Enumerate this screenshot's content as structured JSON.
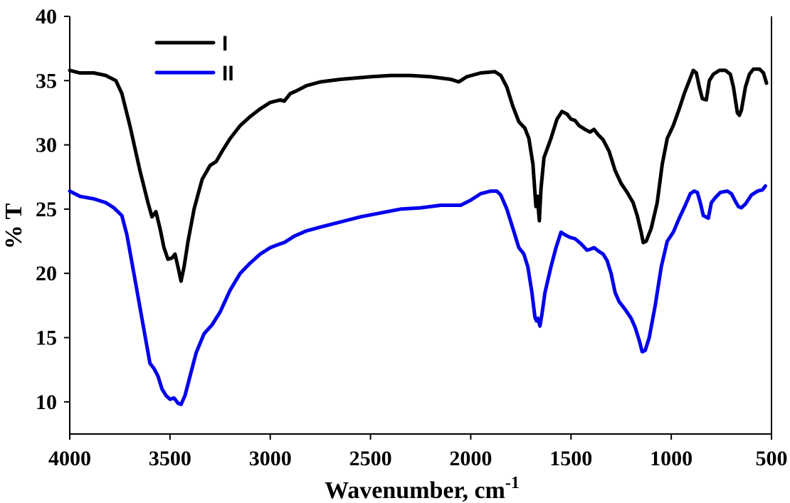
{
  "chart_data": {
    "type": "line",
    "xlabel": "Wavenumber, cm",
    "xlabel_superscript": "-1",
    "ylabel": "% T",
    "xlim": [
      4000,
      500
    ],
    "ylim": [
      7.5,
      40
    ],
    "x_reversed": true,
    "x_ticks": [
      4000,
      3500,
      3000,
      2500,
      2000,
      1500,
      1000,
      500
    ],
    "x_tick_labels": [
      "4000",
      "3500",
      "3000",
      "2500",
      "2000",
      "1500",
      "1000",
      "500"
    ],
    "y_ticks": [
      10,
      15,
      20,
      25,
      30,
      35,
      40
    ],
    "y_tick_labels": [
      "10",
      "15",
      "20",
      "25",
      "30",
      "35",
      "40"
    ],
    "grid": false,
    "legend_position": "top-left",
    "series": [
      {
        "name": "I",
        "color": "#000000",
        "points": [
          [
            4000,
            35.8
          ],
          [
            3950,
            35.6
          ],
          [
            3880,
            35.6
          ],
          [
            3820,
            35.4
          ],
          [
            3770,
            35.0
          ],
          [
            3740,
            34.0
          ],
          [
            3700,
            31.5
          ],
          [
            3650,
            28.0
          ],
          [
            3610,
            25.5
          ],
          [
            3590,
            24.4
          ],
          [
            3570,
            24.8
          ],
          [
            3550,
            23.5
          ],
          [
            3530,
            22.0
          ],
          [
            3510,
            21.1
          ],
          [
            3490,
            21.2
          ],
          [
            3475,
            21.5
          ],
          [
            3460,
            20.5
          ],
          [
            3445,
            19.4
          ],
          [
            3430,
            20.5
          ],
          [
            3410,
            22.5
          ],
          [
            3380,
            25.0
          ],
          [
            3340,
            27.3
          ],
          [
            3300,
            28.4
          ],
          [
            3270,
            28.7
          ],
          [
            3240,
            29.5
          ],
          [
            3200,
            30.5
          ],
          [
            3150,
            31.5
          ],
          [
            3100,
            32.2
          ],
          [
            3050,
            32.8
          ],
          [
            3000,
            33.3
          ],
          [
            2950,
            33.5
          ],
          [
            2930,
            33.4
          ],
          [
            2900,
            34.0
          ],
          [
            2870,
            34.2
          ],
          [
            2820,
            34.6
          ],
          [
            2750,
            34.9
          ],
          [
            2650,
            35.1
          ],
          [
            2500,
            35.3
          ],
          [
            2400,
            35.4
          ],
          [
            2300,
            35.4
          ],
          [
            2200,
            35.3
          ],
          [
            2100,
            35.1
          ],
          [
            2060,
            34.9
          ],
          [
            2020,
            35.3
          ],
          [
            1950,
            35.6
          ],
          [
            1880,
            35.7
          ],
          [
            1850,
            35.4
          ],
          [
            1820,
            34.5
          ],
          [
            1790,
            33.0
          ],
          [
            1760,
            31.8
          ],
          [
            1730,
            31.3
          ],
          [
            1710,
            30.5
          ],
          [
            1690,
            28.5
          ],
          [
            1675,
            25.2
          ],
          [
            1668,
            26.0
          ],
          [
            1658,
            24.1
          ],
          [
            1650,
            26.5
          ],
          [
            1635,
            29.0
          ],
          [
            1600,
            30.5
          ],
          [
            1570,
            32.0
          ],
          [
            1545,
            32.6
          ],
          [
            1520,
            32.4
          ],
          [
            1500,
            32.0
          ],
          [
            1480,
            31.9
          ],
          [
            1460,
            31.5
          ],
          [
            1430,
            31.2
          ],
          [
            1405,
            31.0
          ],
          [
            1385,
            31.2
          ],
          [
            1365,
            30.8
          ],
          [
            1340,
            30.4
          ],
          [
            1310,
            29.5
          ],
          [
            1280,
            28.0
          ],
          [
            1250,
            27.0
          ],
          [
            1220,
            26.3
          ],
          [
            1190,
            25.5
          ],
          [
            1170,
            24.5
          ],
          [
            1150,
            23.2
          ],
          [
            1140,
            22.4
          ],
          [
            1125,
            22.5
          ],
          [
            1100,
            23.5
          ],
          [
            1070,
            25.5
          ],
          [
            1045,
            28.5
          ],
          [
            1020,
            30.5
          ],
          [
            990,
            31.5
          ],
          [
            960,
            32.8
          ],
          [
            935,
            34.0
          ],
          [
            910,
            35.0
          ],
          [
            890,
            35.8
          ],
          [
            875,
            35.6
          ],
          [
            860,
            34.5
          ],
          [
            845,
            33.6
          ],
          [
            825,
            33.5
          ],
          [
            810,
            35.0
          ],
          [
            790,
            35.5
          ],
          [
            760,
            35.8
          ],
          [
            730,
            35.8
          ],
          [
            705,
            35.5
          ],
          [
            690,
            34.5
          ],
          [
            670,
            32.5
          ],
          [
            660,
            32.3
          ],
          [
            650,
            32.7
          ],
          [
            630,
            34.5
          ],
          [
            610,
            35.5
          ],
          [
            590,
            35.9
          ],
          [
            560,
            35.9
          ],
          [
            540,
            35.6
          ],
          [
            525,
            34.8
          ]
        ]
      },
      {
        "name": "II",
        "color": "#0000ee",
        "points": [
          [
            4000,
            26.4
          ],
          [
            3950,
            26.0
          ],
          [
            3880,
            25.8
          ],
          [
            3820,
            25.5
          ],
          [
            3780,
            25.1
          ],
          [
            3740,
            24.5
          ],
          [
            3715,
            23.0
          ],
          [
            3680,
            20.0
          ],
          [
            3640,
            16.5
          ],
          [
            3600,
            13.0
          ],
          [
            3580,
            12.6
          ],
          [
            3560,
            12.0
          ],
          [
            3540,
            11.0
          ],
          [
            3520,
            10.5
          ],
          [
            3500,
            10.2
          ],
          [
            3480,
            10.3
          ],
          [
            3460,
            9.9
          ],
          [
            3445,
            9.8
          ],
          [
            3425,
            10.5
          ],
          [
            3400,
            12.0
          ],
          [
            3370,
            13.8
          ],
          [
            3330,
            15.3
          ],
          [
            3290,
            16.0
          ],
          [
            3250,
            17.0
          ],
          [
            3200,
            18.7
          ],
          [
            3150,
            20.0
          ],
          [
            3100,
            20.8
          ],
          [
            3050,
            21.5
          ],
          [
            3000,
            22.0
          ],
          [
            2950,
            22.3
          ],
          [
            2930,
            22.4
          ],
          [
            2900,
            22.7
          ],
          [
            2880,
            22.9
          ],
          [
            2820,
            23.3
          ],
          [
            2750,
            23.6
          ],
          [
            2650,
            24.0
          ],
          [
            2550,
            24.4
          ],
          [
            2450,
            24.7
          ],
          [
            2350,
            25.0
          ],
          [
            2250,
            25.1
          ],
          [
            2150,
            25.3
          ],
          [
            2050,
            25.3
          ],
          [
            2000,
            25.7
          ],
          [
            1950,
            26.2
          ],
          [
            1900,
            26.4
          ],
          [
            1870,
            26.4
          ],
          [
            1850,
            26.1
          ],
          [
            1820,
            25.0
          ],
          [
            1790,
            23.5
          ],
          [
            1760,
            22.0
          ],
          [
            1735,
            21.5
          ],
          [
            1715,
            20.5
          ],
          [
            1695,
            18.5
          ],
          [
            1680,
            16.6
          ],
          [
            1672,
            16.3
          ],
          [
            1665,
            16.5
          ],
          [
            1655,
            15.9
          ],
          [
            1645,
            16.8
          ],
          [
            1630,
            18.5
          ],
          [
            1600,
            20.5
          ],
          [
            1575,
            22.0
          ],
          [
            1550,
            23.2
          ],
          [
            1530,
            23.0
          ],
          [
            1505,
            22.8
          ],
          [
            1480,
            22.7
          ],
          [
            1450,
            22.3
          ],
          [
            1420,
            21.8
          ],
          [
            1400,
            21.9
          ],
          [
            1385,
            22.0
          ],
          [
            1360,
            21.7
          ],
          [
            1340,
            21.5
          ],
          [
            1320,
            21.0
          ],
          [
            1300,
            20.0
          ],
          [
            1280,
            18.5
          ],
          [
            1260,
            17.8
          ],
          [
            1230,
            17.2
          ],
          [
            1200,
            16.5
          ],
          [
            1180,
            15.8
          ],
          [
            1160,
            14.8
          ],
          [
            1145,
            13.9
          ],
          [
            1130,
            14.0
          ],
          [
            1110,
            15.0
          ],
          [
            1080,
            17.5
          ],
          [
            1050,
            20.5
          ],
          [
            1020,
            22.5
          ],
          [
            990,
            23.2
          ],
          [
            960,
            24.3
          ],
          [
            930,
            25.3
          ],
          [
            905,
            26.2
          ],
          [
            885,
            26.4
          ],
          [
            870,
            26.3
          ],
          [
            855,
            25.5
          ],
          [
            840,
            24.5
          ],
          [
            815,
            24.3
          ],
          [
            800,
            25.5
          ],
          [
            780,
            25.9
          ],
          [
            755,
            26.3
          ],
          [
            720,
            26.4
          ],
          [
            700,
            26.2
          ],
          [
            680,
            25.6
          ],
          [
            665,
            25.2
          ],
          [
            650,
            25.1
          ],
          [
            630,
            25.4
          ],
          [
            600,
            26.1
          ],
          [
            570,
            26.4
          ],
          [
            545,
            26.5
          ],
          [
            530,
            26.8
          ]
        ]
      }
    ]
  }
}
